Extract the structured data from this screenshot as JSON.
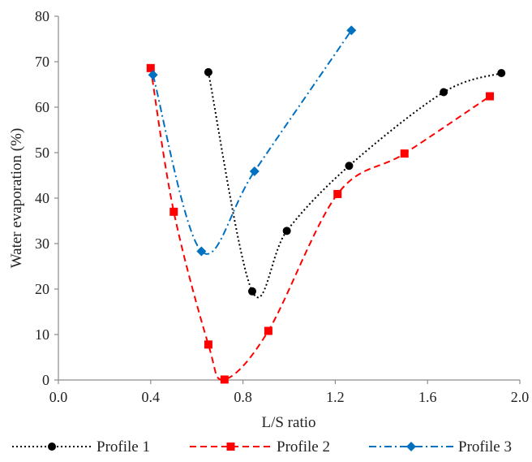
{
  "chart_data": {
    "type": "scatter",
    "xlabel": "L/S ratio",
    "ylabel": "Water evaporation (%)",
    "xlim": [
      0.0,
      2.0
    ],
    "ylim": [
      0,
      80
    ],
    "x_ticks": [
      "0.0",
      "0.4",
      "0.8",
      "1.2",
      "1.6",
      "2.0"
    ],
    "y_ticks": [
      "0",
      "10",
      "20",
      "30",
      "40",
      "50",
      "60",
      "70",
      "80"
    ],
    "grid": false,
    "legend_position": "bottom",
    "series": [
      {
        "name": "Profile 1",
        "color": "#000000",
        "marker": "circle",
        "line": "dotted smooth",
        "x": [
          0.65,
          0.84,
          0.99,
          1.26,
          1.67,
          1.92
        ],
        "y": [
          67.7,
          19.5,
          32.8,
          47.1,
          63.3,
          67.5
        ]
      },
      {
        "name": "Profile 2",
        "color": "#ff0000",
        "marker": "square",
        "line": "dashed smooth",
        "x": [
          0.4,
          0.5,
          0.65,
          0.72,
          0.91,
          1.21,
          1.5,
          1.87
        ],
        "y": [
          68.6,
          37.0,
          7.8,
          0.1,
          10.8,
          40.9,
          49.8,
          62.4
        ]
      },
      {
        "name": "Profile 3",
        "color": "#0070c0",
        "marker": "diamond",
        "line": "dash-dot smooth",
        "x": [
          0.41,
          0.62,
          0.85,
          1.27
        ],
        "y": [
          67.1,
          28.3,
          45.9,
          76.9
        ]
      }
    ]
  }
}
